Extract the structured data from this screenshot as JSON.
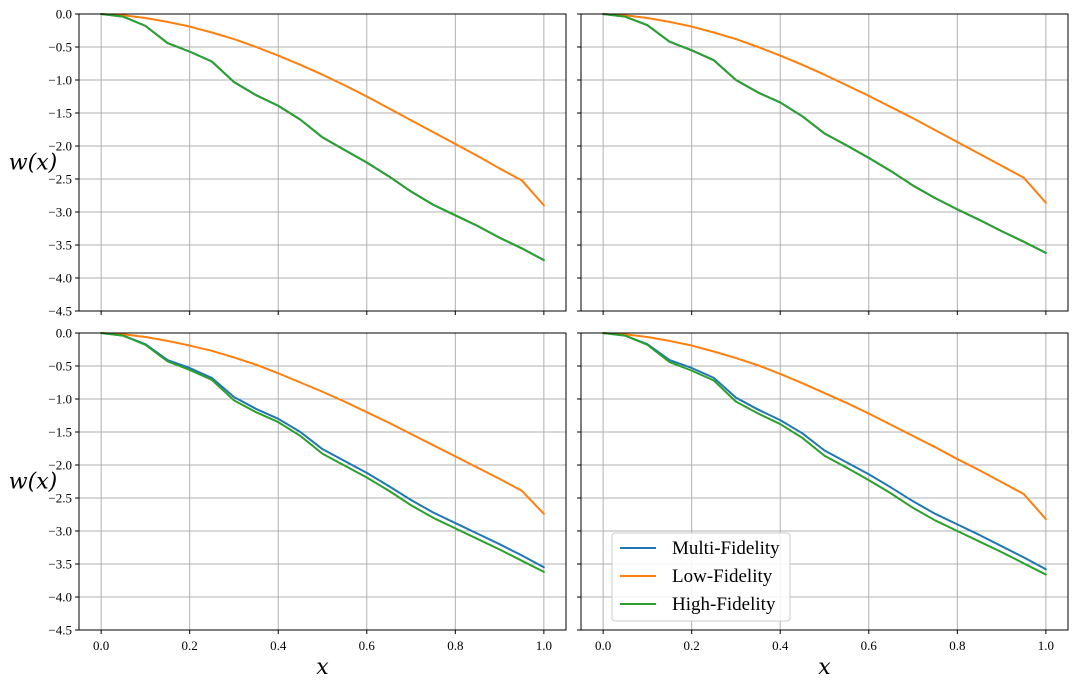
{
  "chart_data": {
    "type": "line",
    "layout": "2x2 grid, shared x and y axes",
    "xlim": [
      -0.05,
      1.05
    ],
    "ylim": [
      -4.5,
      0.0
    ],
    "grid": true,
    "xticks": [
      "0.0",
      "0.2",
      "0.4",
      "0.6",
      "0.8",
      "1.0"
    ],
    "yticks": [
      "0.0",
      "−0.5",
      "−1.0",
      "−1.5",
      "−2.0",
      "−2.5",
      "−3.0",
      "−3.5",
      "−4.0",
      "−4.5"
    ],
    "ylabel": "w(x)",
    "xlabel": "x",
    "colors": {
      "Multi-Fidelity": "#1f77b4",
      "Low-Fidelity": "#ff7f0e",
      "High-Fidelity": "#2ca02c"
    },
    "legend": {
      "placement": "lower-left of bottom-right panel",
      "entries": [
        "Multi-Fidelity",
        "Low-Fidelity",
        "High-Fidelity"
      ]
    },
    "x": [
      0.0,
      0.05,
      0.1,
      0.15,
      0.2,
      0.25,
      0.3,
      0.35,
      0.4,
      0.45,
      0.5,
      0.55,
      0.6,
      0.65,
      0.7,
      0.75,
      0.8,
      0.85,
      0.9,
      0.95,
      1.0
    ],
    "panels": [
      {
        "position": "top-left",
        "series": [
          {
            "name": "Multi-Fidelity",
            "values": [
              0.0,
              -0.04,
              -0.18,
              -0.44,
              -0.57,
              -0.72,
              -1.03,
              -1.23,
              -1.39,
              -1.6,
              -1.87,
              -2.06,
              -2.25,
              -2.46,
              -2.69,
              -2.89,
              -3.05,
              -3.21,
              -3.39,
              -3.55,
              -3.73
            ]
          },
          {
            "name": "Low-Fidelity",
            "values": [
              0.0,
              -0.02,
              -0.06,
              -0.12,
              -0.19,
              -0.28,
              -0.38,
              -0.5,
              -0.63,
              -0.77,
              -0.92,
              -1.08,
              -1.25,
              -1.43,
              -1.61,
              -1.79,
              -1.97,
              -2.15,
              -2.34,
              -2.52,
              -2.9
            ]
          },
          {
            "name": "High-Fidelity",
            "values": [
              0.0,
              -0.04,
              -0.18,
              -0.44,
              -0.57,
              -0.72,
              -1.03,
              -1.23,
              -1.39,
              -1.6,
              -1.87,
              -2.06,
              -2.25,
              -2.46,
              -2.69,
              -2.89,
              -3.05,
              -3.21,
              -3.39,
              -3.55,
              -3.73
            ]
          }
        ]
      },
      {
        "position": "top-right",
        "series": [
          {
            "name": "Multi-Fidelity",
            "values": [
              0.0,
              -0.04,
              -0.17,
              -0.42,
              -0.55,
              -0.7,
              -1.0,
              -1.19,
              -1.34,
              -1.55,
              -1.81,
              -1.99,
              -2.18,
              -2.38,
              -2.6,
              -2.79,
              -2.96,
              -3.12,
              -3.29,
              -3.45,
              -3.62
            ]
          },
          {
            "name": "Low-Fidelity",
            "values": [
              0.0,
              -0.02,
              -0.06,
              -0.12,
              -0.19,
              -0.28,
              -0.38,
              -0.5,
              -0.63,
              -0.77,
              -0.92,
              -1.08,
              -1.24,
              -1.41,
              -1.58,
              -1.76,
              -1.94,
              -2.12,
              -2.3,
              -2.48,
              -2.86
            ]
          },
          {
            "name": "High-Fidelity",
            "values": [
              0.0,
              -0.04,
              -0.17,
              -0.42,
              -0.55,
              -0.7,
              -1.0,
              -1.19,
              -1.34,
              -1.55,
              -1.81,
              -1.99,
              -2.18,
              -2.38,
              -2.6,
              -2.79,
              -2.96,
              -3.12,
              -3.29,
              -3.45,
              -3.62
            ]
          }
        ]
      },
      {
        "position": "bottom-left",
        "series": [
          {
            "name": "Multi-Fidelity",
            "values": [
              0.0,
              -0.04,
              -0.17,
              -0.41,
              -0.53,
              -0.68,
              -0.97,
              -1.15,
              -1.3,
              -1.5,
              -1.76,
              -1.94,
              -2.12,
              -2.32,
              -2.53,
              -2.72,
              -2.88,
              -3.04,
              -3.2,
              -3.37,
              -3.55
            ]
          },
          {
            "name": "Low-Fidelity",
            "values": [
              0.0,
              -0.02,
              -0.06,
              -0.12,
              -0.19,
              -0.27,
              -0.37,
              -0.48,
              -0.61,
              -0.75,
              -0.89,
              -1.04,
              -1.2,
              -1.36,
              -1.53,
              -1.7,
              -1.87,
              -2.04,
              -2.21,
              -2.39,
              -2.74
            ]
          },
          {
            "name": "High-Fidelity",
            "values": [
              0.0,
              -0.04,
              -0.18,
              -0.43,
              -0.56,
              -0.71,
              -1.02,
              -1.2,
              -1.35,
              -1.56,
              -1.83,
              -2.01,
              -2.19,
              -2.39,
              -2.61,
              -2.8,
              -2.96,
              -3.12,
              -3.28,
              -3.45,
              -3.62
            ]
          }
        ]
      },
      {
        "position": "bottom-right",
        "series": [
          {
            "name": "Multi-Fidelity",
            "values": [
              0.0,
              -0.04,
              -0.17,
              -0.41,
              -0.53,
              -0.68,
              -0.98,
              -1.16,
              -1.32,
              -1.52,
              -1.78,
              -1.96,
              -2.14,
              -2.34,
              -2.55,
              -2.74,
              -2.9,
              -3.06,
              -3.23,
              -3.4,
              -3.58
            ]
          },
          {
            "name": "Low-Fidelity",
            "values": [
              0.0,
              -0.02,
              -0.06,
              -0.12,
              -0.19,
              -0.28,
              -0.38,
              -0.49,
              -0.62,
              -0.76,
              -0.91,
              -1.06,
              -1.22,
              -1.39,
              -1.56,
              -1.73,
              -1.91,
              -2.08,
              -2.26,
              -2.44,
              -2.82
            ]
          },
          {
            "name": "High-Fidelity",
            "values": [
              0.0,
              -0.04,
              -0.18,
              -0.44,
              -0.57,
              -0.72,
              -1.04,
              -1.22,
              -1.38,
              -1.59,
              -1.86,
              -2.04,
              -2.23,
              -2.43,
              -2.65,
              -2.84,
              -3.0,
              -3.16,
              -3.32,
              -3.49,
              -3.66
            ]
          }
        ]
      }
    ]
  }
}
